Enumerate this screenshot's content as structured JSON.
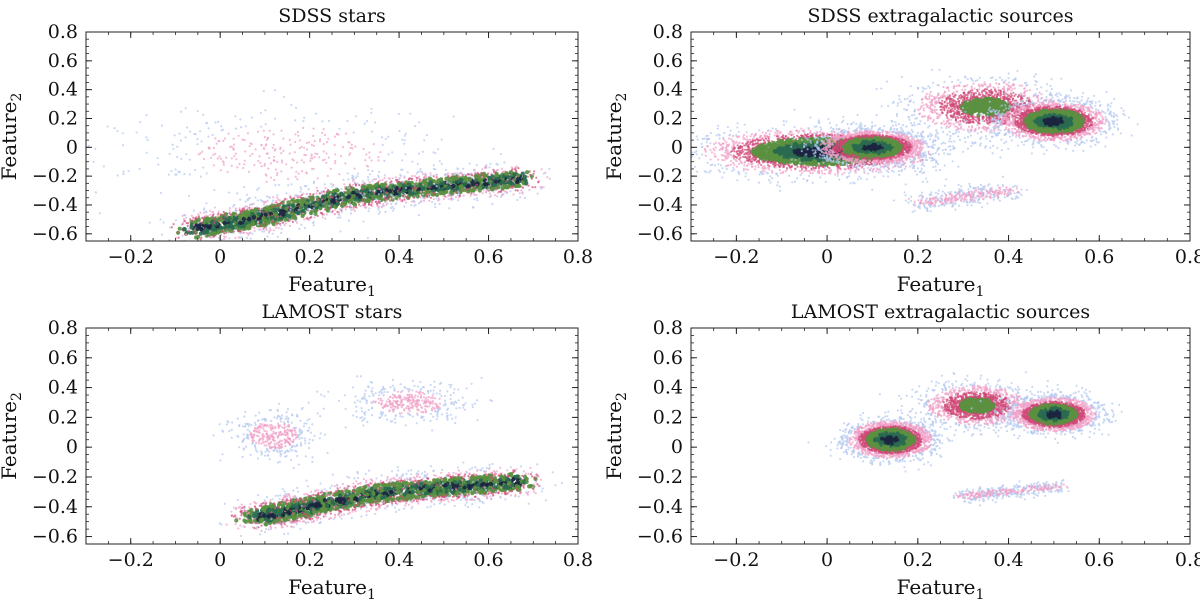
{
  "chart_data": [
    {
      "type": "scatter",
      "title": "SDSS stars",
      "xlabel": "Feature",
      "xlabel_sub": "1",
      "ylabel": "Feature",
      "ylabel_sub": "2",
      "xlim": [
        -0.3,
        0.8
      ],
      "ylim": [
        -0.65,
        0.8
      ],
      "xticks": [
        "-0.2",
        "0",
        "0.2",
        "0.4",
        "0.6",
        "0.8"
      ],
      "yticks": [
        "-0.6",
        "-0.4",
        "-0.2",
        "0",
        "0.2",
        "0.4",
        "0.6",
        "0.8"
      ],
      "series": [
        {
          "name": "main ridge",
          "points": [
            [
              -0.06,
              -0.57
            ],
            [
              0.1,
              -0.48
            ],
            [
              0.3,
              -0.33
            ],
            [
              0.5,
              -0.27
            ],
            [
              0.67,
              -0.22
            ]
          ],
          "spread": 0.05,
          "density": "high"
        },
        {
          "name": "diffuse cloud",
          "center": [
            0.15,
            -0.05
          ],
          "extent": [
            0.32,
            0.3
          ],
          "density": "low"
        }
      ]
    },
    {
      "type": "scatter",
      "title": "SDSS extragalactic sources",
      "xlabel": "Feature",
      "xlabel_sub": "1",
      "ylabel": "Feature",
      "ylabel_sub": "2",
      "xlim": [
        -0.3,
        0.8
      ],
      "ylim": [
        -0.65,
        0.8
      ],
      "xticks": [
        "-0.2",
        "0",
        "0.2",
        "0.4",
        "0.6",
        "0.8"
      ],
      "yticks": [
        "-0.6",
        "-0.4",
        "-0.2",
        "0",
        "0.2",
        "0.4",
        "0.6",
        "0.8"
      ],
      "series": [
        {
          "name": "low-feature clump",
          "center": [
            -0.02,
            -0.03
          ],
          "extent": [
            0.22,
            0.14
          ],
          "density": "high"
        },
        {
          "name": "mid clump",
          "center": [
            0.1,
            0.0
          ],
          "extent": [
            0.1,
            0.1
          ],
          "density": "high"
        },
        {
          "name": "upper clump",
          "center": [
            0.35,
            0.28
          ],
          "extent": [
            0.14,
            0.16
          ],
          "density": "medium"
        },
        {
          "name": "right clump",
          "center": [
            0.5,
            0.18
          ],
          "extent": [
            0.1,
            0.12
          ],
          "density": "high"
        },
        {
          "name": "faint tail",
          "points": [
            [
              0.2,
              -0.38
            ],
            [
              0.3,
              -0.34
            ],
            [
              0.4,
              -0.3
            ]
          ],
          "spread": 0.03,
          "density": "low"
        }
      ]
    },
    {
      "type": "scatter",
      "title": "LAMOST stars",
      "xlabel": "Feature",
      "xlabel_sub": "1",
      "ylabel": "Feature",
      "ylabel_sub": "2",
      "xlim": [
        -0.3,
        0.8
      ],
      "ylim": [
        -0.65,
        0.8
      ],
      "xticks": [
        "-0.2",
        "0",
        "0.2",
        "0.4",
        "0.6",
        "0.8"
      ],
      "yticks": [
        "-0.6",
        "-0.4",
        "-0.2",
        "0",
        "0.2",
        "0.4",
        "0.6",
        "0.8"
      ],
      "series": [
        {
          "name": "main ridge",
          "points": [
            [
              0.08,
              -0.47
            ],
            [
              0.2,
              -0.4
            ],
            [
              0.35,
              -0.31
            ],
            [
              0.5,
              -0.27
            ],
            [
              0.67,
              -0.23
            ]
          ],
          "spread": 0.05,
          "density": "high"
        },
        {
          "name": "upper-left cloud",
          "center": [
            0.12,
            0.08
          ],
          "extent": [
            0.08,
            0.14
          ],
          "density": "low"
        },
        {
          "name": "upper-right cloud",
          "center": [
            0.42,
            0.3
          ],
          "extent": [
            0.12,
            0.12
          ],
          "density": "low"
        }
      ]
    },
    {
      "type": "scatter",
      "title": "LAMOST extragalactic sources",
      "xlabel": "Feature",
      "xlabel_sub": "1",
      "ylabel": "Feature",
      "ylabel_sub": "2",
      "xlim": [
        -0.3,
        0.8
      ],
      "ylim": [
        -0.65,
        0.8
      ],
      "xticks": [
        "-0.2",
        "0",
        "0.2",
        "0.4",
        "0.6",
        "0.8"
      ],
      "yticks": [
        "-0.6",
        "-0.4",
        "-0.2",
        "0",
        "0.2",
        "0.4",
        "0.6",
        "0.8"
      ],
      "series": [
        {
          "name": "left clump",
          "center": [
            0.14,
            0.05
          ],
          "extent": [
            0.08,
            0.11
          ],
          "density": "high"
        },
        {
          "name": "upper clump",
          "center": [
            0.33,
            0.28
          ],
          "extent": [
            0.1,
            0.12
          ],
          "density": "medium"
        },
        {
          "name": "right clump",
          "center": [
            0.5,
            0.22
          ],
          "extent": [
            0.08,
            0.1
          ],
          "density": "high"
        },
        {
          "name": "faint tail",
          "points": [
            [
              0.3,
              -0.33
            ],
            [
              0.4,
              -0.3
            ],
            [
              0.52,
              -0.26
            ]
          ],
          "spread": 0.02,
          "density": "low"
        }
      ]
    }
  ],
  "colormap": [
    "#b4c8f0",
    "#f0a0c8",
    "#d04878",
    "#5a9040",
    "#2a6a50",
    "#1c2640"
  ]
}
